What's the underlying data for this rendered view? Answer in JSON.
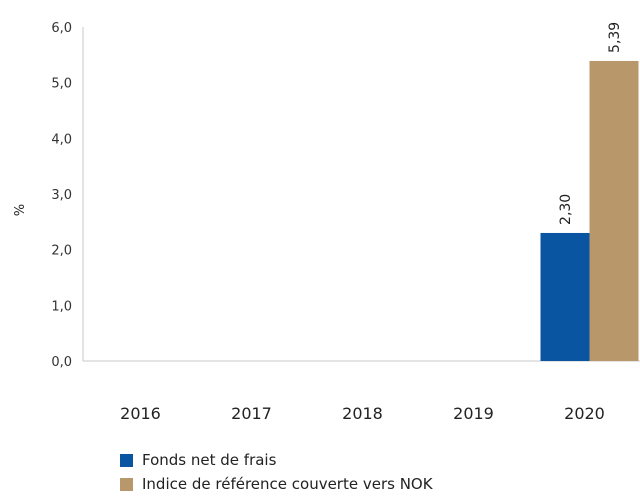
{
  "chart_data": {
    "type": "bar",
    "ylabel": "%",
    "categories": [
      "2016",
      "2017",
      "2018",
      "2019",
      "2020"
    ],
    "yticks": [
      "0,0",
      "1,0",
      "2,0",
      "3,0",
      "4,0",
      "5,0",
      "6,0"
    ],
    "ylim": [
      0,
      6
    ],
    "grid": false,
    "legend_position": "bottom-left",
    "series": [
      {
        "name": "Fonds net de frais",
        "color": "#0a55a2",
        "values": [
          null,
          null,
          null,
          null,
          2.3
        ],
        "labels": [
          "",
          "",
          "",
          "",
          "2,30"
        ]
      },
      {
        "name": "Indice de référence couverte vers NOK",
        "color": "#b8976a",
        "values": [
          null,
          null,
          null,
          null,
          5.39
        ],
        "labels": [
          "",
          "",
          "",
          "",
          "5,39"
        ]
      }
    ]
  }
}
